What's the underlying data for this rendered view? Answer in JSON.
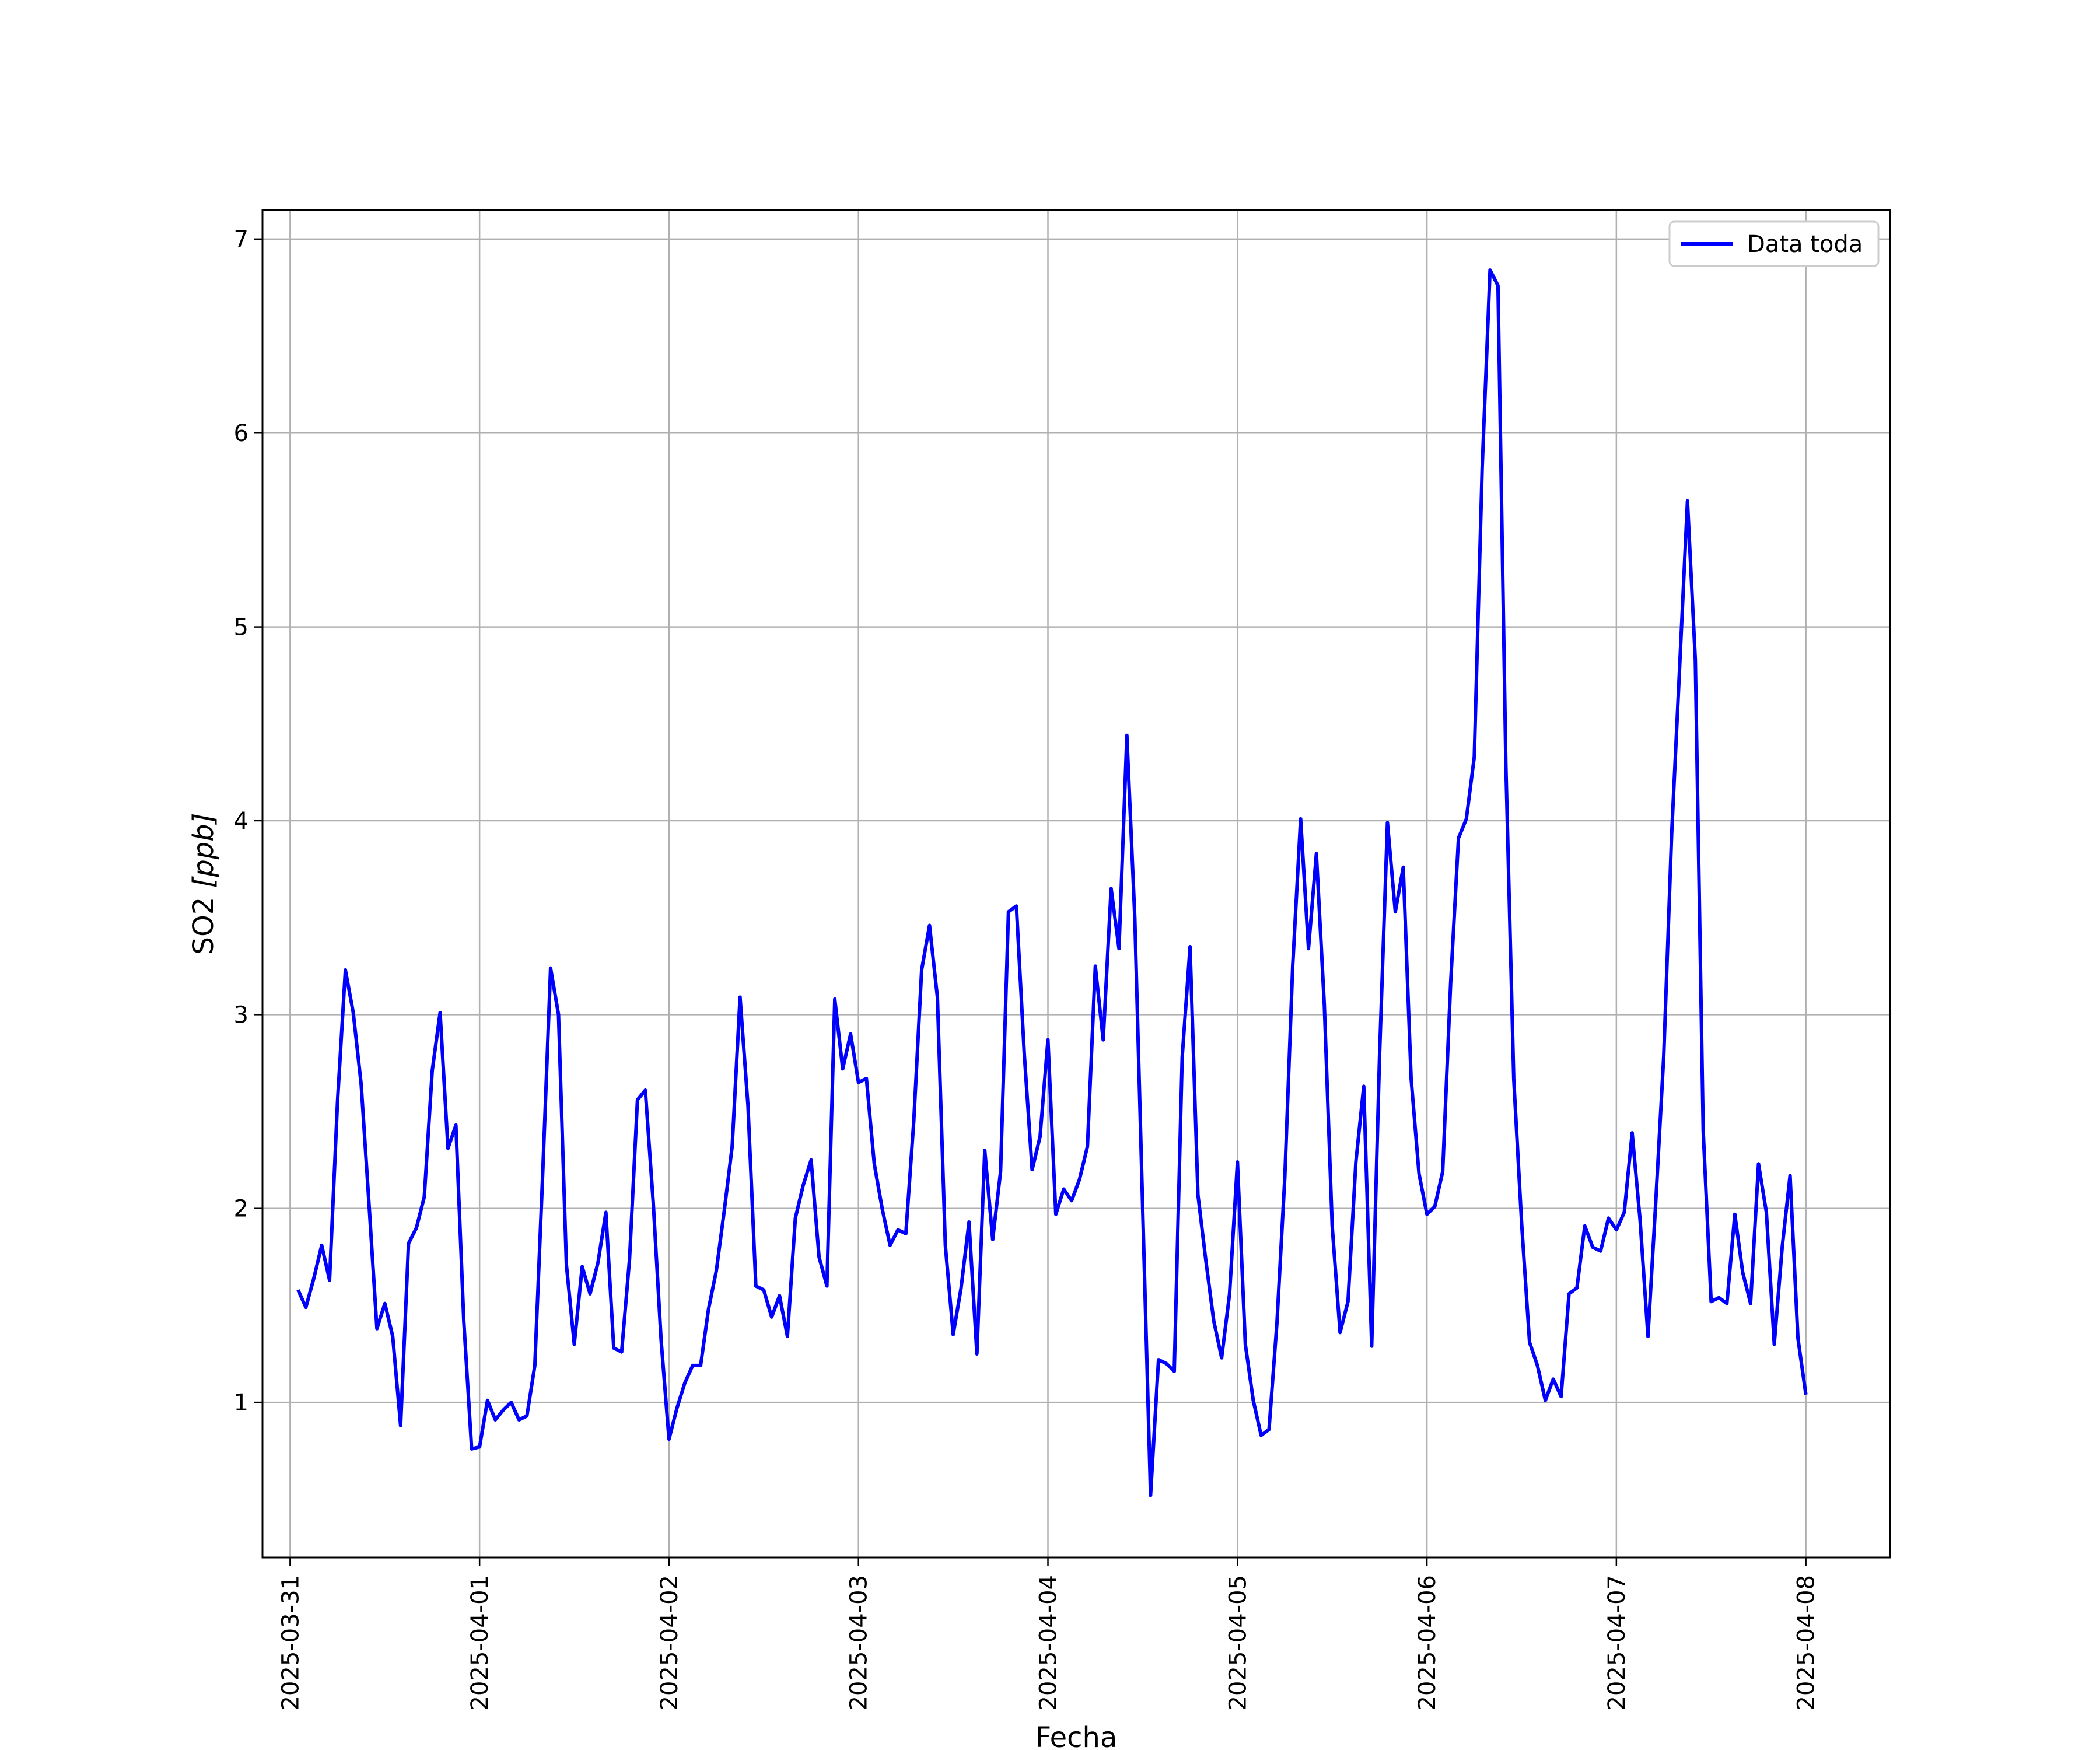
{
  "chart_data": {
    "type": "line",
    "title": "",
    "xlabel": "Fecha",
    "ylabel_main": "SO2 ",
    "ylabel_unit": "[ppb]",
    "legend_placement": "top-right",
    "grid": true,
    "xlim": [
      "2025-03-30 20:30",
      "2025-04-08 10:40"
    ],
    "ylim": [
      0.2,
      7.15
    ],
    "x_ticks": [
      "2025-03-31",
      "2025-04-01",
      "2025-04-02",
      "2025-04-03",
      "2025-04-04",
      "2025-04-05",
      "2025-04-06",
      "2025-04-07",
      "2025-04-08"
    ],
    "y_ticks": [
      1,
      2,
      3,
      4,
      5,
      6,
      7
    ],
    "series": [
      {
        "name": "Data toda",
        "color": "#0000ff",
        "x": [
          "2025-03-31 01:00",
          "2025-03-31 02:00",
          "2025-03-31 03:00",
          "2025-03-31 04:00",
          "2025-03-31 05:00",
          "2025-03-31 06:00",
          "2025-03-31 07:00",
          "2025-03-31 08:00",
          "2025-03-31 09:00",
          "2025-03-31 10:00",
          "2025-03-31 11:00",
          "2025-03-31 12:00",
          "2025-03-31 13:00",
          "2025-03-31 14:00",
          "2025-03-31 15:00",
          "2025-03-31 16:00",
          "2025-03-31 17:00",
          "2025-03-31 18:00",
          "2025-03-31 19:00",
          "2025-03-31 20:00",
          "2025-03-31 21:00",
          "2025-03-31 22:00",
          "2025-03-31 23:00",
          "2025-04-01 00:00",
          "2025-04-01 01:00",
          "2025-04-01 02:00",
          "2025-04-01 03:00",
          "2025-04-01 04:00",
          "2025-04-01 05:00",
          "2025-04-01 06:00",
          "2025-04-01 07:00",
          "2025-04-01 08:00",
          "2025-04-01 09:00",
          "2025-04-01 10:00",
          "2025-04-01 11:00",
          "2025-04-01 12:00",
          "2025-04-01 13:00",
          "2025-04-01 14:00",
          "2025-04-01 15:00",
          "2025-04-01 16:00",
          "2025-04-01 17:00",
          "2025-04-01 18:00",
          "2025-04-01 19:00",
          "2025-04-01 20:00",
          "2025-04-01 21:00",
          "2025-04-01 22:00",
          "2025-04-01 23:00",
          "2025-04-02 00:00",
          "2025-04-02 01:00",
          "2025-04-02 02:00",
          "2025-04-02 03:00",
          "2025-04-02 04:00",
          "2025-04-02 05:00",
          "2025-04-02 06:00",
          "2025-04-02 07:00",
          "2025-04-02 08:00",
          "2025-04-02 09:00",
          "2025-04-02 10:00",
          "2025-04-02 11:00",
          "2025-04-02 12:00",
          "2025-04-02 13:00",
          "2025-04-02 14:00",
          "2025-04-02 15:00",
          "2025-04-02 16:00",
          "2025-04-02 17:00",
          "2025-04-02 18:00",
          "2025-04-02 19:00",
          "2025-04-02 20:00",
          "2025-04-02 21:00",
          "2025-04-02 22:00",
          "2025-04-02 23:00",
          "2025-04-03 00:00",
          "2025-04-03 01:00",
          "2025-04-03 02:00",
          "2025-04-03 03:00",
          "2025-04-03 04:00",
          "2025-04-03 05:00",
          "2025-04-03 06:00",
          "2025-04-03 07:00",
          "2025-04-03 08:00",
          "2025-04-03 09:00",
          "2025-04-03 10:00",
          "2025-04-03 11:00",
          "2025-04-03 12:00",
          "2025-04-03 13:00",
          "2025-04-03 14:00",
          "2025-04-03 15:00",
          "2025-04-03 16:00",
          "2025-04-03 17:00",
          "2025-04-03 18:00",
          "2025-04-03 19:00",
          "2025-04-03 20:00",
          "2025-04-03 21:00",
          "2025-04-03 22:00",
          "2025-04-03 23:00",
          "2025-04-04 00:00",
          "2025-04-04 01:00",
          "2025-04-04 02:00",
          "2025-04-04 03:00",
          "2025-04-04 04:00",
          "2025-04-04 05:00",
          "2025-04-04 06:00",
          "2025-04-04 07:00",
          "2025-04-04 08:00",
          "2025-04-04 09:00",
          "2025-04-04 10:00",
          "2025-04-04 11:00",
          "2025-04-04 12:00",
          "2025-04-04 13:00",
          "2025-04-04 14:00",
          "2025-04-04 15:00",
          "2025-04-04 16:00",
          "2025-04-04 17:00",
          "2025-04-04 18:00",
          "2025-04-04 19:00",
          "2025-04-04 20:00",
          "2025-04-04 21:00",
          "2025-04-04 22:00",
          "2025-04-04 23:00",
          "2025-04-05 00:00",
          "2025-04-05 01:00",
          "2025-04-05 02:00",
          "2025-04-05 03:00",
          "2025-04-05 04:00",
          "2025-04-05 05:00",
          "2025-04-05 06:00",
          "2025-04-05 07:00",
          "2025-04-05 08:00",
          "2025-04-05 09:00",
          "2025-04-05 10:00",
          "2025-04-05 11:00",
          "2025-04-05 12:00",
          "2025-04-05 13:00",
          "2025-04-05 14:00",
          "2025-04-05 15:00",
          "2025-04-05 16:00",
          "2025-04-05 17:00",
          "2025-04-05 18:00",
          "2025-04-05 19:00",
          "2025-04-05 20:00",
          "2025-04-05 21:00",
          "2025-04-05 22:00",
          "2025-04-05 23:00",
          "2025-04-06 00:00",
          "2025-04-06 01:00",
          "2025-04-06 02:00",
          "2025-04-06 03:00",
          "2025-04-06 04:00",
          "2025-04-06 05:00",
          "2025-04-06 06:00",
          "2025-04-06 07:00",
          "2025-04-06 08:00",
          "2025-04-06 09:00",
          "2025-04-06 10:00",
          "2025-04-06 11:00",
          "2025-04-06 12:00",
          "2025-04-06 13:00",
          "2025-04-06 14:00",
          "2025-04-06 15:00",
          "2025-04-06 16:00",
          "2025-04-06 17:00",
          "2025-04-06 18:00",
          "2025-04-06 19:00",
          "2025-04-06 20:00",
          "2025-04-06 21:00",
          "2025-04-06 22:00",
          "2025-04-06 23:00",
          "2025-04-07 00:00",
          "2025-04-07 01:00",
          "2025-04-07 02:00",
          "2025-04-07 03:00",
          "2025-04-07 04:00",
          "2025-04-07 05:00",
          "2025-04-07 06:00",
          "2025-04-07 07:00",
          "2025-04-07 08:00",
          "2025-04-07 09:00",
          "2025-04-07 10:00",
          "2025-04-07 11:00",
          "2025-04-07 12:00",
          "2025-04-07 13:00",
          "2025-04-07 14:00",
          "2025-04-07 15:00",
          "2025-04-07 16:00",
          "2025-04-07 17:00",
          "2025-04-07 18:00",
          "2025-04-07 19:00",
          "2025-04-07 20:00",
          "2025-04-07 21:00",
          "2025-04-07 22:00",
          "2025-04-07 23:00",
          "2025-04-08 00:00"
        ],
        "y": [
          1.58,
          1.49,
          1.64,
          1.81,
          1.63,
          2.55,
          3.23,
          3.01,
          2.64,
          2.02,
          1.38,
          1.51,
          1.34,
          0.88,
          1.82,
          1.9,
          2.06,
          2.71,
          3.01,
          2.31,
          2.43,
          1.42,
          0.76,
          0.77,
          1.01,
          0.91,
          0.96,
          1.0,
          0.91,
          0.93,
          1.19,
          2.18,
          3.24,
          3.0,
          1.71,
          1.3,
          1.7,
          1.56,
          1.72,
          1.98,
          1.28,
          1.26,
          1.74,
          2.56,
          2.61,
          2.03,
          1.32,
          0.81,
          0.97,
          1.1,
          1.19,
          1.19,
          1.48,
          1.68,
          1.99,
          2.32,
          3.09,
          2.53,
          1.6,
          1.58,
          1.44,
          1.55,
          1.34,
          1.95,
          2.12,
          2.25,
          1.75,
          1.6,
          3.08,
          2.72,
          2.9,
          2.65,
          2.67,
          2.23,
          2.0,
          1.81,
          1.89,
          1.87,
          2.45,
          3.23,
          3.46,
          3.09,
          1.81,
          1.35,
          1.59,
          1.93,
          1.25,
          2.3,
          1.84,
          2.19,
          3.53,
          3.56,
          2.8,
          2.2,
          2.37,
          2.87,
          1.97,
          2.1,
          2.04,
          2.15,
          2.32,
          3.25,
          2.87,
          3.65,
          3.34,
          4.44,
          3.5,
          2.0,
          0.52,
          1.22,
          1.2,
          1.16,
          2.78,
          3.35,
          2.07,
          1.73,
          1.42,
          1.23,
          1.56,
          2.24,
          1.3,
          1.01,
          0.83,
          0.86,
          1.41,
          2.16,
          3.25,
          4.01,
          3.34,
          3.83,
          3.05,
          1.91,
          1.36,
          1.52,
          2.24,
          2.63,
          1.29,
          2.79,
          3.99,
          3.53,
          3.76,
          2.67,
          2.18,
          1.97,
          2.01,
          2.19,
          3.16,
          3.91,
          4.01,
          4.33,
          5.82,
          6.84,
          6.76,
          4.29,
          2.67,
          1.92,
          1.31,
          1.19,
          1.01,
          1.12,
          1.03,
          1.56,
          1.59,
          1.91,
          1.8,
          1.78,
          1.95,
          1.89,
          1.98,
          2.39,
          1.94,
          1.34,
          2.04,
          2.79,
          3.93,
          4.78,
          5.65,
          4.83,
          2.4,
          1.52,
          1.54,
          1.51,
          1.97,
          1.67,
          1.51,
          2.23,
          1.98,
          1.3,
          1.8,
          2.17,
          1.33,
          1.04
        ]
      }
    ]
  }
}
